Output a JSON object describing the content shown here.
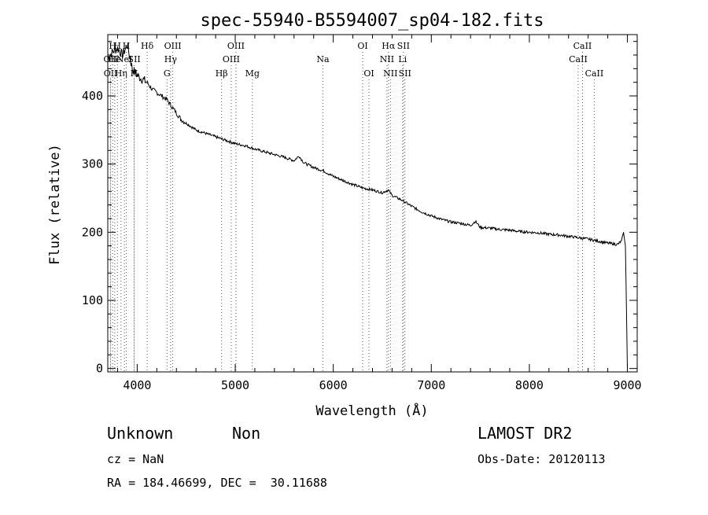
{
  "chart_data": {
    "type": "line",
    "title": "spec-55940-B5594007_sp04-182.fits",
    "xlabel": "Wavelength (Å)",
    "ylabel": "Flux (relative)",
    "xlim": [
      3700,
      9100
    ],
    "ylim": [
      -5,
      490
    ],
    "xticks": [
      4000,
      5000,
      6000,
      7000,
      8000,
      9000
    ],
    "yticks": [
      0,
      100,
      200,
      300,
      400
    ],
    "grid": false,
    "series": [
      {
        "color": "#000000",
        "x": [
          3700,
          3750,
          3800,
          3850,
          3900,
          3950,
          4000,
          4050,
          4100,
          4150,
          4200,
          4250,
          4300,
          4350,
          4400,
          4450,
          4500,
          4600,
          4700,
          4800,
          4900,
          5000,
          5100,
          5200,
          5300,
          5400,
          5500,
          5600,
          5650,
          5700,
          5800,
          5900,
          6000,
          6100,
          6200,
          6300,
          6400,
          6500,
          6560,
          6600,
          6700,
          6800,
          6900,
          7000,
          7100,
          7200,
          7300,
          7400,
          7450,
          7500,
          7600,
          7700,
          7800,
          7900,
          8000,
          8100,
          8200,
          8300,
          8400,
          8500,
          8600,
          8700,
          8800,
          8900,
          8940,
          8960,
          8980,
          9000
        ],
        "y": [
          455,
          465,
          470,
          460,
          475,
          440,
          430,
          425,
          420,
          410,
          405,
          400,
          395,
          385,
          375,
          365,
          360,
          350,
          345,
          340,
          335,
          330,
          327,
          322,
          318,
          314,
          310,
          305,
          312,
          302,
          295,
          290,
          282,
          276,
          270,
          265,
          262,
          258,
          262,
          254,
          247,
          238,
          230,
          224,
          219,
          215,
          213,
          210,
          216,
          207,
          206,
          204,
          203,
          201,
          200,
          199,
          197,
          196,
          194,
          192,
          190,
          187,
          184,
          182,
          187,
          200,
          180,
          0
        ]
      }
    ],
    "annotations": [
      {
        "text": "OII",
        "x": 3727,
        "row": 2
      },
      {
        "text": "OII",
        "x": 3729,
        "row": 3
      },
      {
        "text": "H",
        "x": 3750,
        "row": 1
      },
      {
        "text": "He",
        "x": 3771,
        "row": 2
      },
      {
        "text": "H",
        "x": 3798,
        "row": 1
      },
      {
        "text": "Hη",
        "x": 3835,
        "row": 3
      },
      {
        "text": "NeI",
        "x": 3869,
        "row": 2
      },
      {
        "text": "H",
        "x": 3889,
        "row": 1
      },
      {
        "text": "SII",
        "x": 3970,
        "row": 2
      },
      {
        "text": "H",
        "x": 3968,
        "row": 3
      },
      {
        "text": "Hδ",
        "x": 4102,
        "row": 1
      },
      {
        "text": "OIII",
        "x": 4363,
        "row": 1
      },
      {
        "text": "Hγ",
        "x": 4341,
        "row": 2
      },
      {
        "text": "G",
        "x": 4304,
        "row": 3
      },
      {
        "text": "Hβ",
        "x": 4861,
        "row": 3
      },
      {
        "text": "OIII",
        "x": 5007,
        "row": 1
      },
      {
        "text": "OIII",
        "x": 4959,
        "row": 2
      },
      {
        "text": "Mg",
        "x": 5175,
        "row": 3
      },
      {
        "text": "Na",
        "x": 5894,
        "row": 2
      },
      {
        "text": "OI",
        "x": 6300,
        "row": 1
      },
      {
        "text": "OI",
        "x": 6364,
        "row": 3
      },
      {
        "text": "Hα",
        "x": 6563,
        "row": 1
      },
      {
        "text": "SII",
        "x": 6716,
        "row": 1
      },
      {
        "text": "NII",
        "x": 6548,
        "row": 2
      },
      {
        "text": "Li",
        "x": 6707,
        "row": 2
      },
      {
        "text": "NII",
        "x": 6583,
        "row": 3
      },
      {
        "text": "SII",
        "x": 6731,
        "row": 3
      },
      {
        "text": "CaII",
        "x": 8542,
        "row": 1
      },
      {
        "text": "CaII",
        "x": 8498,
        "row": 2
      },
      {
        "text": "CaII",
        "x": 8662,
        "row": 3
      }
    ]
  },
  "info": {
    "class_label": "Unknown",
    "subclass_label": "Non",
    "survey": "LAMOST DR2",
    "cz": "cz = NaN",
    "obs_date": "Obs-Date: 20120113",
    "coords": "RA = 184.46699, DEC =  30.11688"
  }
}
